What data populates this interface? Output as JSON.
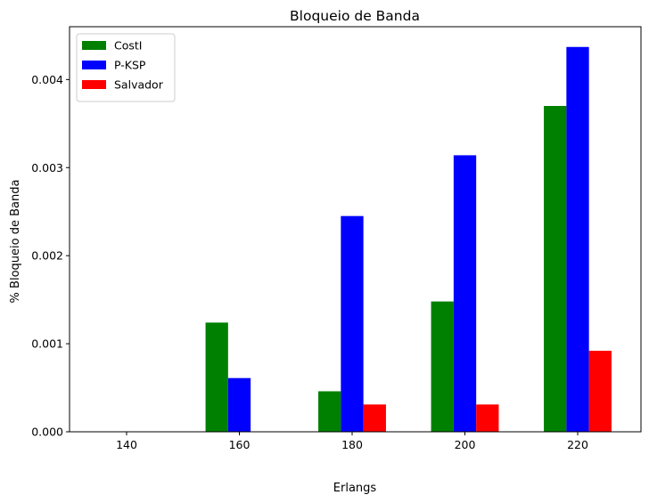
{
  "chart_data": {
    "type": "bar",
    "title": "Bloqueio de Banda",
    "xlabel": "Erlangs",
    "ylabel": "% Bloqueio de Banda",
    "categories": [
      "140",
      "160",
      "180",
      "200",
      "220"
    ],
    "series": [
      {
        "name": "CostI",
        "color": "#008000",
        "values": [
          0,
          0.00124,
          0.00046,
          0.00148,
          0.0037
        ]
      },
      {
        "name": "P-KSP",
        "color": "#0000ff",
        "values": [
          0,
          0.00061,
          0.00245,
          0.00314,
          0.00437
        ]
      },
      {
        "name": "Salvador",
        "color": "#ff0000",
        "values": [
          0,
          0,
          0.00031,
          0.00031,
          0.00092
        ]
      }
    ],
    "ylim": [
      0,
      0.0046
    ],
    "yticks": [
      "0.000",
      "0.001",
      "0.002",
      "0.003",
      "0.004"
    ],
    "legend_position": "top-left",
    "grid": false
  }
}
